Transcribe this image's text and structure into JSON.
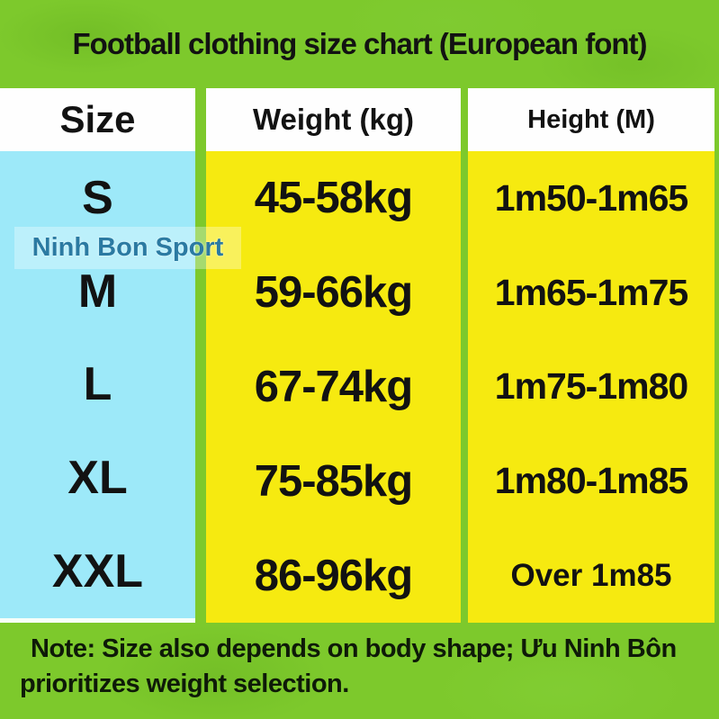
{
  "title": "Football clothing size chart (European font)",
  "watermark": "Ninh Bon Sport",
  "table": {
    "headers": {
      "size": "Size",
      "weight": "Weight (kg)",
      "height": "Height (M)"
    },
    "rows": [
      {
        "size": "S",
        "weight": "45-58kg",
        "height": "1m50-1m65"
      },
      {
        "size": "M",
        "weight": "59-66kg",
        "height": "1m65-1m75"
      },
      {
        "size": "L",
        "weight": "67-74kg",
        "height": "1m75-1m80"
      },
      {
        "size": "XL",
        "weight": "75-85kg",
        "height": "1m80-1m85"
      },
      {
        "size": "XXL",
        "weight": "86-96kg",
        "height": "Over 1m85"
      }
    ]
  },
  "note": {
    "line1": "Note: Size also depends on body shape; Ưu Ninh Bôn",
    "line2": "prioritizes weight selection."
  },
  "colors": {
    "background_green": "#7dc92c",
    "size_column_cyan": "#9de9f9",
    "data_column_yellow": "#f6ea10",
    "header_white": "#fefefe",
    "text_black": "#121212",
    "watermark_blue": "#2b7aa2"
  },
  "chart_data": {
    "type": "table",
    "title": "Football clothing size chart (European font)",
    "columns": [
      "Size",
      "Weight (kg)",
      "Height (M)"
    ],
    "rows": [
      [
        "S",
        "45-58kg",
        "1m50-1m65"
      ],
      [
        "M",
        "59-66kg",
        "1m65-1m75"
      ],
      [
        "L",
        "67-74kg",
        "1m75-1m80"
      ],
      [
        "XL",
        "75-85kg",
        "1m80-1m85"
      ],
      [
        "XXL",
        "86-96kg",
        "Over 1m85"
      ]
    ],
    "note": "Note: Size also depends on body shape; Ưu Ninh Bôn prioritizes weight selection.",
    "watermark": "Ninh Bon Sport"
  }
}
